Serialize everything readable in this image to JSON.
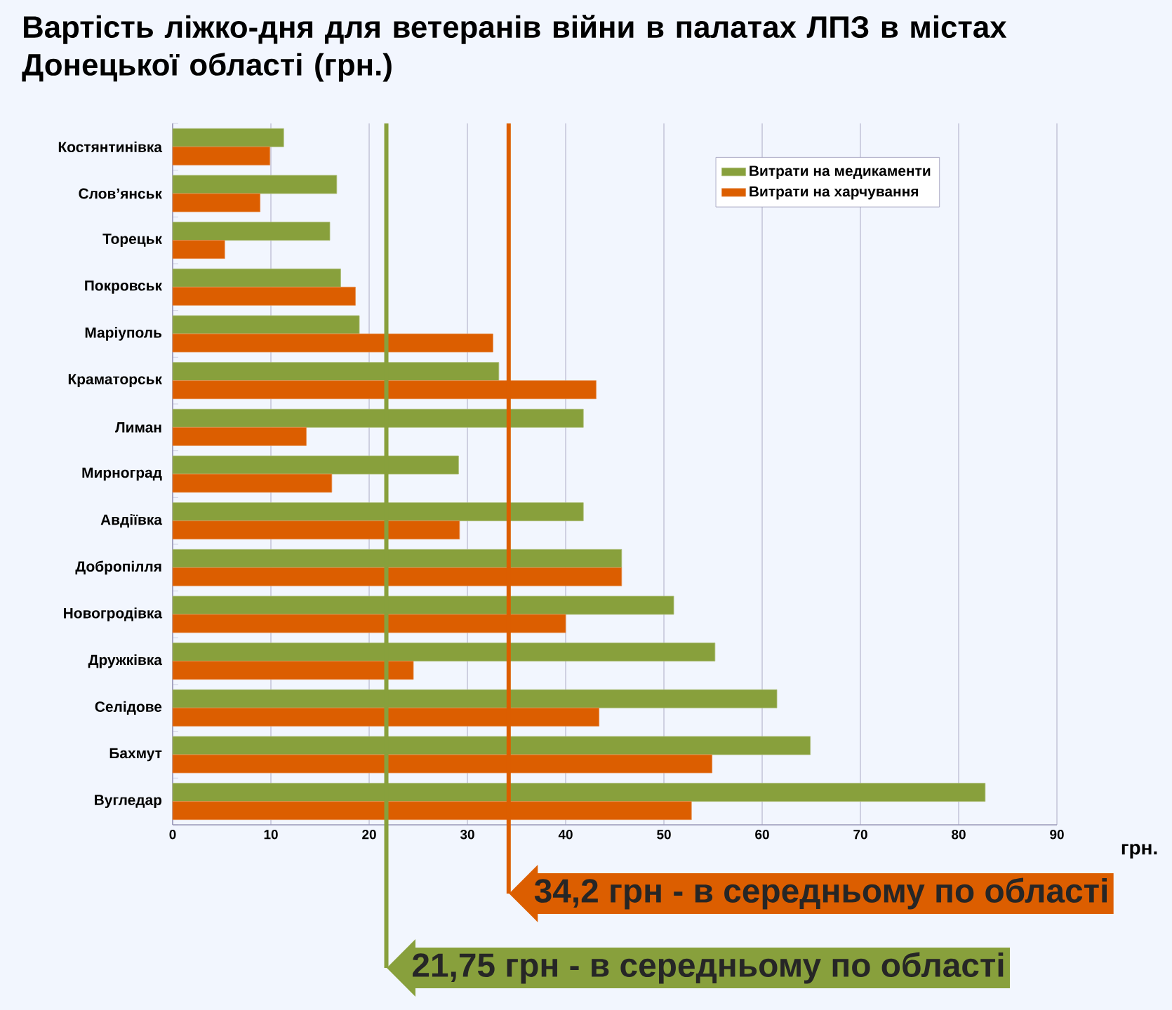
{
  "chart_data": {
    "type": "bar",
    "orientation": "horizontal",
    "title": "Вартість ліжко-дня для ветеранів війни в палатах ЛПЗ в містах Донецької області (грн.)",
    "xlabel": "грн.",
    "categories": [
      "Костянтинівка",
      "Слов’янськ",
      "Торецьк",
      "Покровськ",
      "Маріуполь",
      "Краматорськ",
      "Лиман",
      "Мирноград",
      "Авдіївка",
      "Добропілля",
      "Новогродівка",
      "Дружківка",
      "Селідове",
      "Бахмут",
      "Вугледар"
    ],
    "series": [
      {
        "name": "Витрати на медикаменти",
        "color": "#88a03c",
        "values": [
          11.3,
          16.7,
          16.0,
          17.1,
          19.0,
          33.2,
          41.8,
          29.1,
          41.8,
          45.7,
          51.0,
          55.2,
          61.5,
          64.9,
          82.7
        ]
      },
      {
        "name": "Витрати на харчування",
        "color": "#dc5e00",
        "values": [
          9.9,
          8.9,
          5.3,
          18.6,
          32.6,
          43.1,
          13.6,
          16.2,
          29.2,
          45.7,
          40.0,
          24.5,
          43.4,
          54.9,
          52.8
        ]
      }
    ],
    "xlim": [
      0,
      90
    ],
    "xticks": [
      0,
      10,
      20,
      30,
      40,
      50,
      60,
      70,
      80,
      90
    ],
    "grid": "x",
    "legend": "top right",
    "ref_lines": [
      {
        "axis": "x",
        "value": 34.2,
        "label": "34,2 грн - в середньому по області",
        "color": "#dc5e00"
      },
      {
        "axis": "x",
        "value": 21.75,
        "label": "21,75 грн - в середньому по області",
        "color": "#88a03c"
      }
    ]
  }
}
